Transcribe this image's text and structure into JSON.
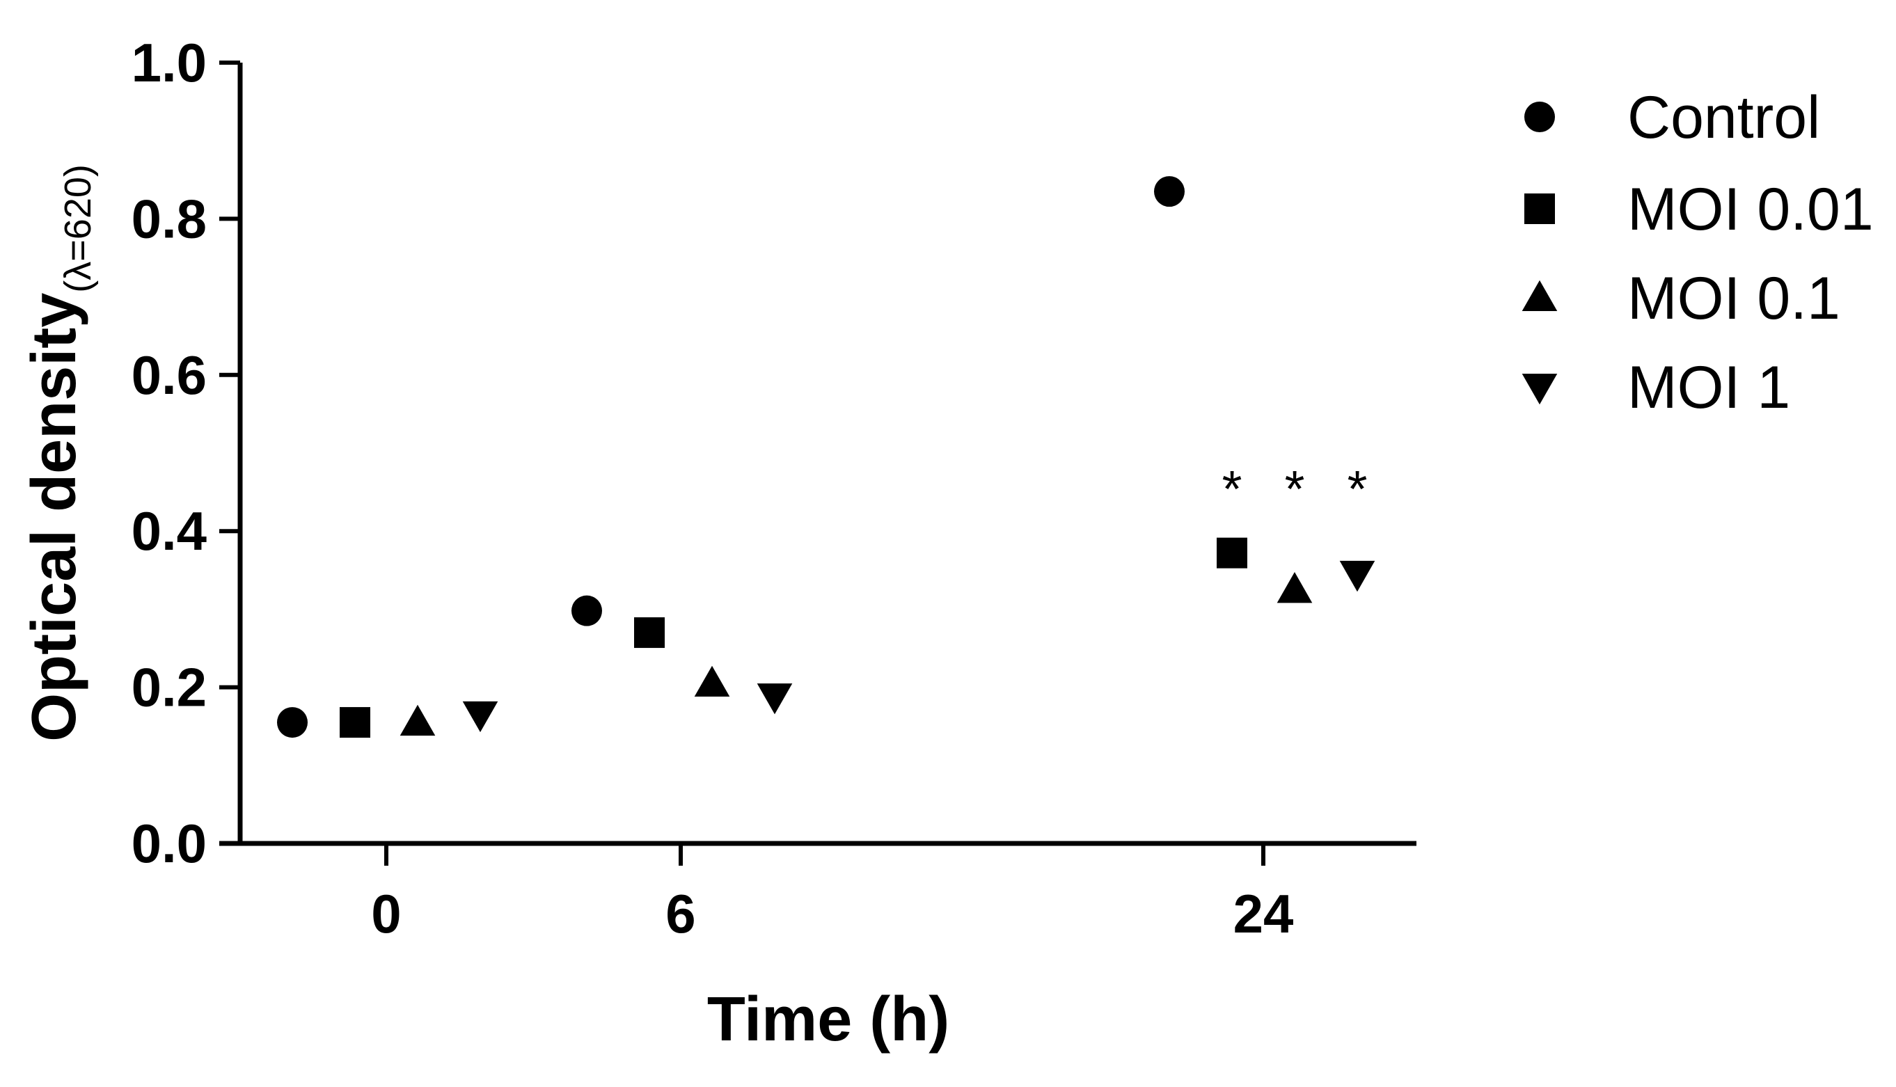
{
  "chart_data": {
    "type": "scatter",
    "xlabel": "Time (h)",
    "ylabel_main": "Optical density",
    "ylabel_sub": "(λ=620)",
    "ylim": [
      0.0,
      1.0
    ],
    "yticks": [
      "0.0",
      "0.2",
      "0.4",
      "0.6",
      "0.8",
      "1.0"
    ],
    "categories": [
      "0",
      "6",
      "24"
    ],
    "legend_position": "right",
    "series": [
      {
        "name": "Control",
        "marker": "circle",
        "values": [
          0.155,
          0.298,
          0.835
        ]
      },
      {
        "name": "MOI 0.01",
        "marker": "square",
        "values": [
          0.155,
          0.27,
          0.372
        ]
      },
      {
        "name": "MOI 0.1",
        "marker": "triangle-up",
        "values": [
          0.155,
          0.205,
          0.325
        ]
      },
      {
        "name": "MOI 1",
        "marker": "triangle-down",
        "values": [
          0.165,
          0.188,
          0.345
        ]
      }
    ],
    "annotations": [
      {
        "text": "*",
        "category": "24",
        "series": "MOI 0.01"
      },
      {
        "text": "*",
        "category": "24",
        "series": "MOI 0.1"
      },
      {
        "text": "*",
        "category": "24",
        "series": "MOI 1"
      }
    ]
  }
}
